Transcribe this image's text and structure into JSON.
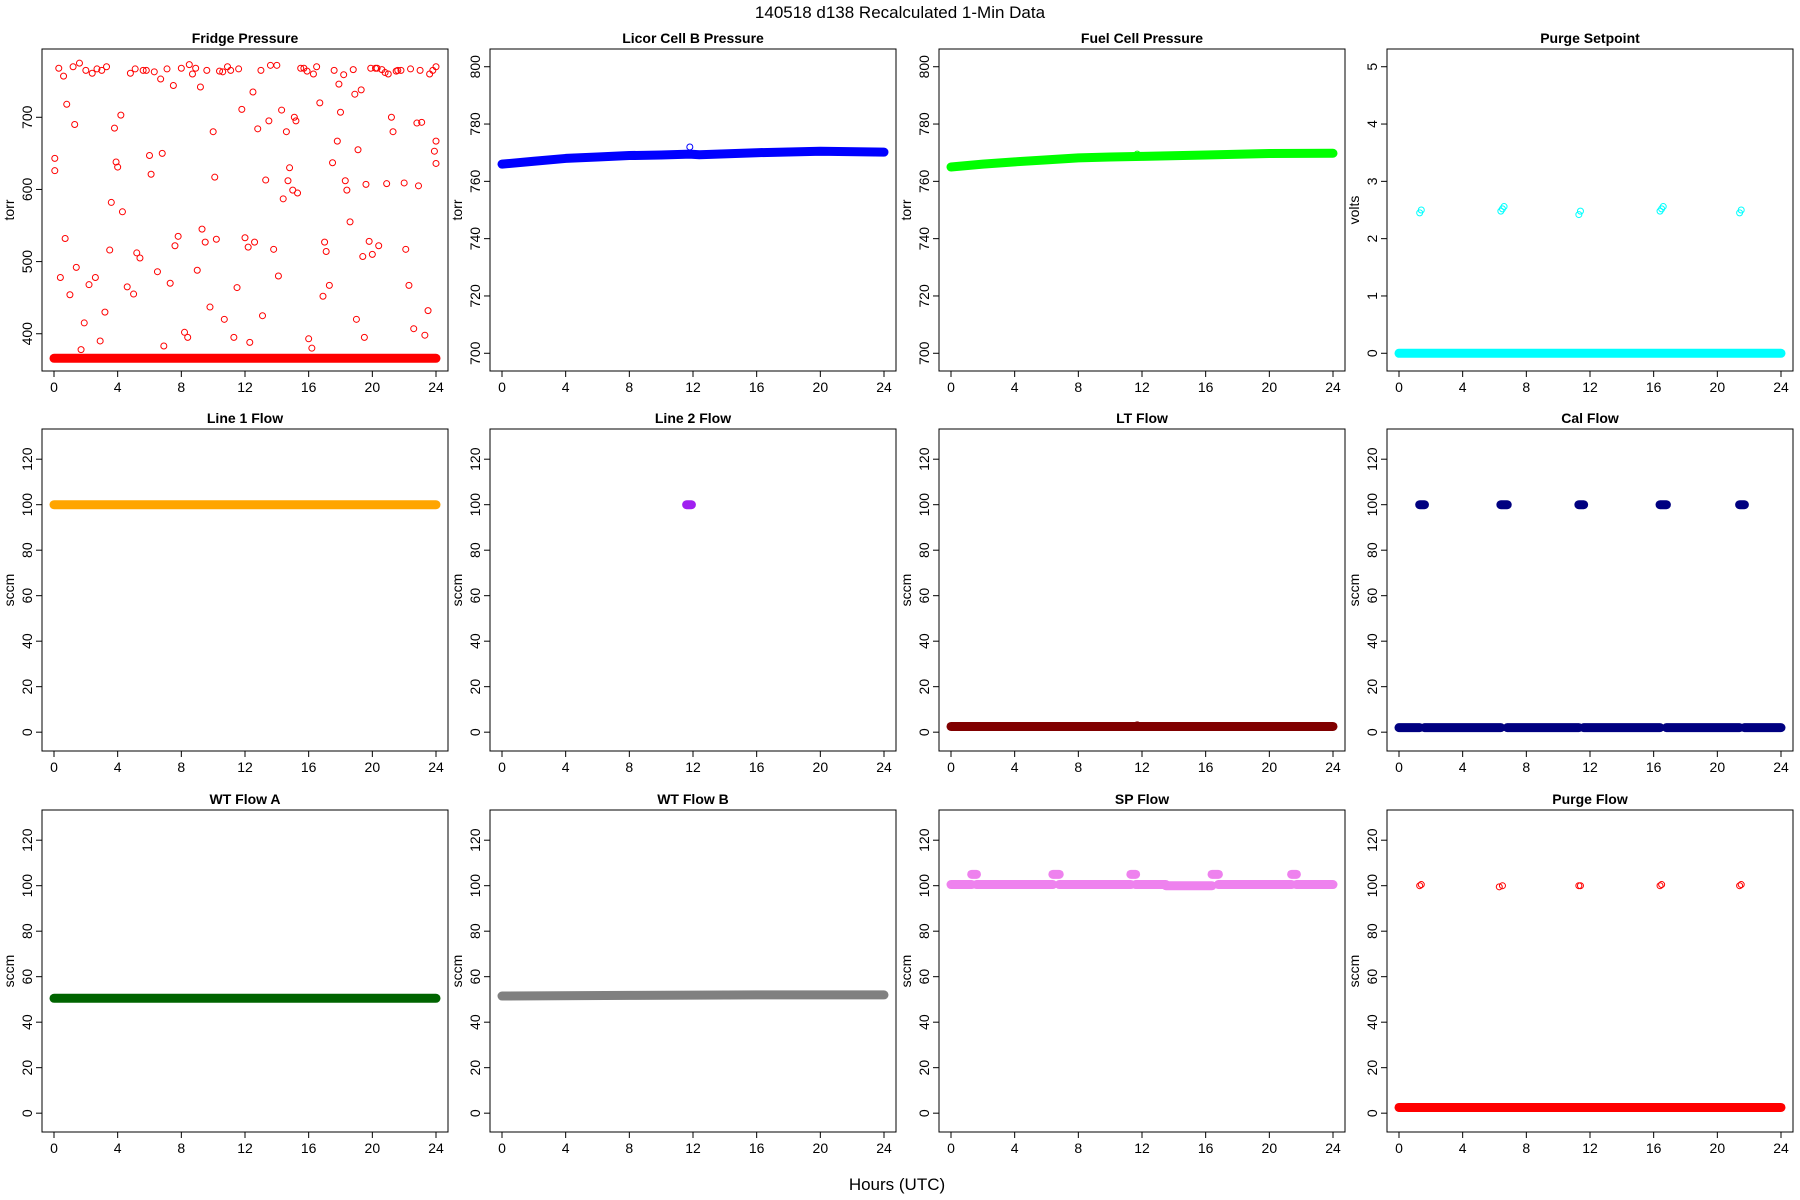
{
  "figure": {
    "title": "140518   d138   Recalculated 1-Min Data",
    "xlabel": "Hours (UTC)"
  },
  "chart_data": [
    {
      "type": "scatter",
      "title": "Fridge Pressure",
      "ylabel": "torr",
      "color": "#ff0000",
      "marker": "open-circle",
      "xlim": [
        0,
        24
      ],
      "ylim": [
        365,
        778
      ],
      "xticks": [
        0,
        4,
        8,
        12,
        16,
        20,
        24
      ],
      "yticks": [
        400,
        500,
        600,
        700
      ],
      "bands": [
        {
          "y": 366,
          "x": [
            0,
            24
          ]
        }
      ],
      "points": [
        [
          0.05,
          643
        ],
        [
          0.05,
          626
        ],
        [
          0.3,
          768
        ],
        [
          0.4,
          478
        ],
        [
          0.6,
          757
        ],
        [
          0.7,
          532
        ],
        [
          0.8,
          718
        ],
        [
          1.0,
          454
        ],
        [
          1.2,
          770
        ],
        [
          1.3,
          690
        ],
        [
          1.4,
          492
        ],
        [
          1.6,
          775
        ],
        [
          1.7,
          378
        ],
        [
          1.9,
          415
        ],
        [
          2.0,
          765
        ],
        [
          2.2,
          468
        ],
        [
          2.4,
          761
        ],
        [
          2.6,
          478
        ],
        [
          2.7,
          767
        ],
        [
          2.9,
          390
        ],
        [
          3.0,
          765
        ],
        [
          3.2,
          430
        ],
        [
          3.3,
          770
        ],
        [
          3.5,
          516
        ],
        [
          3.6,
          582
        ],
        [
          3.8,
          685
        ],
        [
          3.9,
          638
        ],
        [
          4.0,
          631
        ],
        [
          4.2,
          703
        ],
        [
          4.3,
          569
        ],
        [
          4.6,
          465
        ],
        [
          4.8,
          761
        ],
        [
          5.0,
          455
        ],
        [
          5.1,
          767
        ],
        [
          5.2,
          512
        ],
        [
          5.4,
          505
        ],
        [
          5.6,
          765
        ],
        [
          5.8,
          765
        ],
        [
          6.0,
          647
        ],
        [
          6.1,
          621
        ],
        [
          6.3,
          763
        ],
        [
          6.5,
          486
        ],
        [
          6.7,
          753
        ],
        [
          6.8,
          650
        ],
        [
          6.9,
          383
        ],
        [
          7.1,
          767
        ],
        [
          7.3,
          470
        ],
        [
          7.5,
          744
        ],
        [
          7.6,
          522
        ],
        [
          7.8,
          535
        ],
        [
          8.0,
          768
        ],
        [
          8.2,
          402
        ],
        [
          8.4,
          395
        ],
        [
          8.5,
          773
        ],
        [
          8.7,
          760
        ],
        [
          8.9,
          768
        ],
        [
          9.0,
          488
        ],
        [
          9.2,
          742
        ],
        [
          9.3,
          545
        ],
        [
          9.5,
          527
        ],
        [
          9.6,
          765
        ],
        [
          9.8,
          437
        ],
        [
          10.0,
          680
        ],
        [
          10.1,
          617
        ],
        [
          10.2,
          531
        ],
        [
          10.4,
          764
        ],
        [
          10.6,
          763
        ],
        [
          10.7,
          420
        ],
        [
          10.9,
          770
        ],
        [
          11.1,
          765
        ],
        [
          11.3,
          395
        ],
        [
          11.5,
          464
        ],
        [
          11.6,
          767
        ],
        [
          11.8,
          711
        ],
        [
          12.0,
          533
        ],
        [
          12.2,
          520
        ],
        [
          12.3,
          388
        ],
        [
          12.5,
          735
        ],
        [
          12.6,
          527
        ],
        [
          12.8,
          684
        ],
        [
          13.0,
          765
        ],
        [
          13.1,
          425
        ],
        [
          13.3,
          613
        ],
        [
          13.5,
          695
        ],
        [
          13.6,
          772
        ],
        [
          13.8,
          517
        ],
        [
          14.0,
          772
        ],
        [
          14.1,
          480
        ],
        [
          14.3,
          710
        ],
        [
          14.4,
          587
        ],
        [
          14.6,
          680
        ],
        [
          14.7,
          612
        ],
        [
          14.8,
          630
        ],
        [
          15.0,
          599
        ],
        [
          15.1,
          700
        ],
        [
          15.2,
          695
        ],
        [
          15.3,
          595
        ],
        [
          15.5,
          768
        ],
        [
          15.7,
          768
        ],
        [
          15.9,
          764
        ],
        [
          16.0,
          393
        ],
        [
          16.2,
          380
        ],
        [
          16.3,
          760
        ],
        [
          16.5,
          770
        ],
        [
          16.7,
          720
        ],
        [
          16.9,
          452
        ],
        [
          17.0,
          527
        ],
        [
          17.1,
          514
        ],
        [
          17.3,
          467
        ],
        [
          17.5,
          637
        ],
        [
          17.6,
          765
        ],
        [
          17.8,
          667
        ],
        [
          17.9,
          746
        ],
        [
          18.0,
          707
        ],
        [
          18.2,
          759
        ],
        [
          18.3,
          612
        ],
        [
          18.4,
          599
        ],
        [
          18.6,
          555
        ],
        [
          18.8,
          766
        ],
        [
          18.9,
          732
        ],
        [
          19.0,
          420
        ],
        [
          19.1,
          655
        ],
        [
          19.3,
          738
        ],
        [
          19.4,
          507
        ],
        [
          19.5,
          395
        ],
        [
          19.6,
          607
        ],
        [
          19.8,
          528
        ],
        [
          19.9,
          768
        ],
        [
          20.0,
          510
        ],
        [
          20.2,
          768
        ],
        [
          20.3,
          768
        ],
        [
          20.4,
          522
        ],
        [
          20.6,
          766
        ],
        [
          20.8,
          762
        ],
        [
          20.9,
          608
        ],
        [
          21.0,
          760
        ],
        [
          21.2,
          700
        ],
        [
          21.3,
          680
        ],
        [
          21.5,
          764
        ],
        [
          21.6,
          765
        ],
        [
          21.8,
          765
        ],
        [
          22.0,
          609
        ],
        [
          22.1,
          517
        ],
        [
          22.3,
          467
        ],
        [
          22.4,
          767
        ],
        [
          22.6,
          407
        ],
        [
          22.8,
          692
        ],
        [
          22.9,
          605
        ],
        [
          23.0,
          765
        ],
        [
          23.1,
          693
        ],
        [
          23.3,
          398
        ],
        [
          23.5,
          432
        ],
        [
          23.6,
          760
        ],
        [
          23.8,
          765
        ],
        [
          24.0,
          770
        ],
        [
          23.9,
          653
        ],
        [
          24.0,
          636
        ],
        [
          24.0,
          667
        ]
      ]
    },
    {
      "type": "scatter",
      "title": "Licor Cell B Pressure",
      "ylabel": "torr",
      "color": "#0000ff",
      "marker": "open-circle",
      "xlim": [
        0,
        24
      ],
      "ylim": [
        698,
        802
      ],
      "xticks": [
        0,
        4,
        8,
        12,
        16,
        20,
        24
      ],
      "yticks": [
        700,
        720,
        740,
        760,
        780,
        800
      ],
      "lines": [
        {
          "x": [
            0,
            2,
            4,
            6,
            8,
            10,
            11.8,
            12.4,
            16,
            20,
            24
          ],
          "y": [
            766,
            767,
            768,
            768.5,
            769,
            769.2,
            769.5,
            769.3,
            770,
            770.5,
            770.2
          ]
        }
      ],
      "points": [
        [
          11.8,
          772
        ]
      ]
    },
    {
      "type": "scatter",
      "title": "Fuel Cell Pressure",
      "ylabel": "torr",
      "color": "#00ff00",
      "marker": "open-circle",
      "xlim": [
        0,
        24
      ],
      "ylim": [
        698,
        802
      ],
      "xticks": [
        0,
        4,
        8,
        12,
        16,
        20,
        24
      ],
      "yticks": [
        700,
        720,
        740,
        760,
        780,
        800
      ],
      "lines": [
        {
          "x": [
            0,
            2,
            4,
            6,
            8,
            10,
            12,
            16,
            20,
            24
          ],
          "y": [
            765,
            766,
            766.8,
            767.5,
            768.2,
            768.5,
            768.7,
            769.2,
            769.7,
            769.8
          ]
        }
      ],
      "points": [
        [
          11.7,
          769.5
        ]
      ]
    },
    {
      "type": "scatter",
      "title": "Purge Setpoint",
      "ylabel": "volts",
      "color": "#00ffff",
      "marker": "open-circle",
      "xlim": [
        0,
        24
      ],
      "ylim": [
        -0.1,
        5.1
      ],
      "xticks": [
        0,
        4,
        8,
        12,
        16,
        20,
        24
      ],
      "yticks": [
        0,
        1,
        2,
        3,
        4,
        5
      ],
      "bands": [
        {
          "y": 0,
          "x": [
            0,
            24
          ]
        }
      ],
      "points": [
        [
          1.3,
          2.45
        ],
        [
          1.4,
          2.5
        ],
        [
          6.4,
          2.48
        ],
        [
          6.5,
          2.52
        ],
        [
          6.6,
          2.56
        ],
        [
          11.3,
          2.42
        ],
        [
          11.4,
          2.48
        ],
        [
          16.4,
          2.48
        ],
        [
          16.5,
          2.52
        ],
        [
          16.6,
          2.56
        ],
        [
          21.4,
          2.45
        ],
        [
          21.5,
          2.5
        ]
      ]
    },
    {
      "type": "scatter",
      "title": "Line 1 Flow",
      "ylabel": "sccm",
      "color": "#ffa500",
      "marker": "filled-circle",
      "xlim": [
        0,
        24
      ],
      "ylim": [
        -3,
        128
      ],
      "xticks": [
        0,
        4,
        8,
        12,
        16,
        20,
        24
      ],
      "yticks": [
        0,
        20,
        40,
        60,
        80,
        100,
        120
      ],
      "bands": [
        {
          "y": 100,
          "x": [
            0,
            24
          ]
        }
      ],
      "points": []
    },
    {
      "type": "scatter",
      "title": "Line 2 Flow",
      "ylabel": "sccm",
      "color": "#a020f0",
      "marker": "filled-circle",
      "xlim": [
        0,
        24
      ],
      "ylim": [
        -3,
        128
      ],
      "xticks": [
        0,
        4,
        8,
        12,
        16,
        20,
        24
      ],
      "yticks": [
        0,
        20,
        40,
        60,
        80,
        100,
        120
      ],
      "bands": [
        {
          "y": 100,
          "x": [
            11.6,
            11.9
          ]
        }
      ],
      "points": []
    },
    {
      "type": "scatter",
      "title": "LT Flow",
      "ylabel": "sccm",
      "color": "#800000",
      "marker": "filled-circle",
      "xlim": [
        0,
        24
      ],
      "ylim": [
        -3,
        128
      ],
      "xticks": [
        0,
        4,
        8,
        12,
        16,
        20,
        24
      ],
      "yticks": [
        0,
        20,
        40,
        60,
        80,
        100,
        120
      ],
      "bands": [
        {
          "y": 2.5,
          "x": [
            0,
            24
          ]
        }
      ],
      "points": [
        [
          11.7,
          3
        ]
      ]
    },
    {
      "type": "scatter",
      "title": "Cal Flow",
      "ylabel": "sccm",
      "color": "#000080",
      "marker": "filled-circle",
      "xlim": [
        0,
        24
      ],
      "ylim": [
        -3,
        128
      ],
      "xticks": [
        0,
        4,
        8,
        12,
        16,
        20,
        24
      ],
      "yticks": [
        0,
        20,
        40,
        60,
        80,
        100,
        120
      ],
      "bands": [
        {
          "y": 2,
          "x": [
            0,
            1.3
          ]
        },
        {
          "y": 2,
          "x": [
            1.6,
            6.4
          ]
        },
        {
          "y": 2,
          "x": [
            6.8,
            11.3
          ]
        },
        {
          "y": 2,
          "x": [
            11.6,
            16.4
          ]
        },
        {
          "y": 2,
          "x": [
            16.8,
            21.4
          ]
        },
        {
          "y": 2,
          "x": [
            21.7,
            24
          ]
        },
        {
          "y": 100,
          "x": [
            1.3,
            1.6
          ]
        },
        {
          "y": 100,
          "x": [
            6.4,
            6.8
          ]
        },
        {
          "y": 100,
          "x": [
            11.3,
            11.6
          ]
        },
        {
          "y": 100,
          "x": [
            16.4,
            16.8
          ]
        },
        {
          "y": 100,
          "x": [
            21.4,
            21.7
          ]
        }
      ],
      "points": []
    },
    {
      "type": "scatter",
      "title": "WT Flow A",
      "ylabel": "sccm",
      "color": "#006400",
      "marker": "filled-circle",
      "xlim": [
        0,
        24
      ],
      "ylim": [
        -3,
        128
      ],
      "xticks": [
        0,
        4,
        8,
        12,
        16,
        20,
        24
      ],
      "yticks": [
        0,
        20,
        40,
        60,
        80,
        100,
        120
      ],
      "bands": [
        {
          "y": 50.5,
          "x": [
            0,
            24
          ]
        }
      ],
      "points": []
    },
    {
      "type": "scatter",
      "title": "WT Flow B",
      "ylabel": "sccm",
      "color": "#808080",
      "marker": "filled-circle",
      "xlim": [
        0,
        24
      ],
      "ylim": [
        -3,
        128
      ],
      "xticks": [
        0,
        4,
        8,
        12,
        16,
        20,
        24
      ],
      "yticks": [
        0,
        20,
        40,
        60,
        80,
        100,
        120
      ],
      "lines": [
        {
          "x": [
            0,
            8,
            16,
            24
          ],
          "y": [
            51.5,
            51.8,
            52,
            52
          ]
        }
      ],
      "points": []
    },
    {
      "type": "scatter",
      "title": "SP Flow",
      "ylabel": "sccm",
      "color": "#ee82ee",
      "marker": "filled-circle",
      "xlim": [
        0,
        24
      ],
      "ylim": [
        -3,
        128
      ],
      "xticks": [
        0,
        4,
        8,
        12,
        16,
        20,
        24
      ],
      "yticks": [
        0,
        20,
        40,
        60,
        80,
        100,
        120
      ],
      "bands": [
        {
          "y": 100.5,
          "x": [
            0,
            1.3
          ]
        },
        {
          "y": 100.5,
          "x": [
            1.6,
            6.4
          ]
        },
        {
          "y": 100.5,
          "x": [
            6.8,
            11.3
          ]
        },
        {
          "y": 100.5,
          "x": [
            11.6,
            13.5
          ]
        },
        {
          "y": 100,
          "x": [
            13.5,
            16.4
          ]
        },
        {
          "y": 100.5,
          "x": [
            16.8,
            21.4
          ]
        },
        {
          "y": 100.5,
          "x": [
            21.7,
            24
          ]
        },
        {
          "y": 105,
          "x": [
            1.3,
            1.6
          ]
        },
        {
          "y": 105,
          "x": [
            6.4,
            6.8
          ]
        },
        {
          "y": 105,
          "x": [
            11.3,
            11.6
          ]
        },
        {
          "y": 105,
          "x": [
            16.4,
            16.8
          ]
        },
        {
          "y": 105,
          "x": [
            21.4,
            21.7
          ]
        }
      ],
      "points": []
    },
    {
      "type": "scatter",
      "title": "Purge Flow",
      "ylabel": "sccm",
      "color": "#ff0000",
      "marker": "open-circle",
      "xlim": [
        0,
        24
      ],
      "ylim": [
        -3,
        128
      ],
      "xticks": [
        0,
        4,
        8,
        12,
        16,
        20,
        24
      ],
      "yticks": [
        0,
        20,
        40,
        60,
        80,
        100,
        120
      ],
      "bands": [
        {
          "y": 2.5,
          "x": [
            0,
            24
          ]
        }
      ],
      "points": [
        [
          1.3,
          100
        ],
        [
          1.4,
          100.5
        ],
        [
          6.3,
          99.5
        ],
        [
          6.5,
          100
        ],
        [
          11.3,
          100
        ],
        [
          11.4,
          100
        ],
        [
          16.4,
          100
        ],
        [
          16.5,
          100.5
        ],
        [
          21.4,
          100
        ],
        [
          21.5,
          100.5
        ]
      ]
    }
  ]
}
